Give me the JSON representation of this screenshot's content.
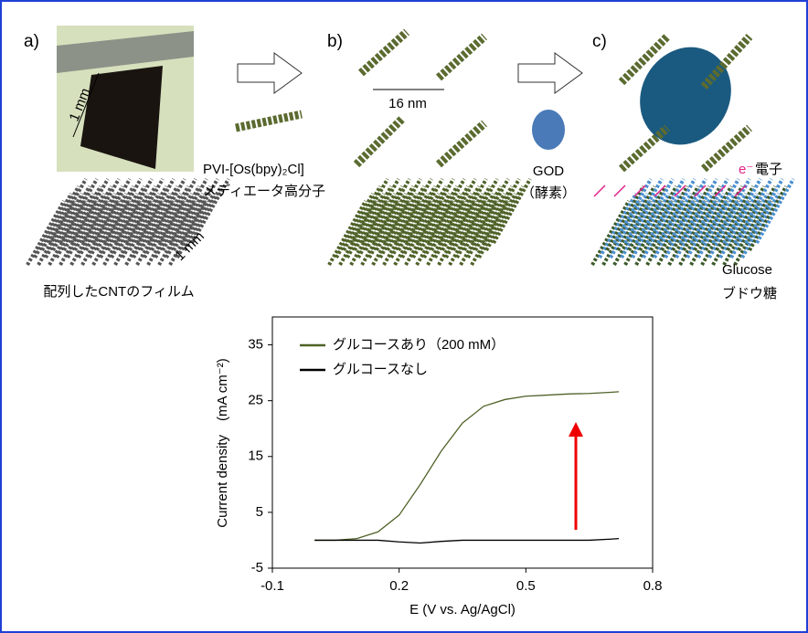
{
  "diagram": {
    "panel_a": "a)",
    "panel_b": "b)",
    "panel_c": "c)",
    "scale_photo": "1 mm",
    "scale_film": "1 mm",
    "cnt_film": "配列したCNTのフィルム",
    "mediator_formula": "PVI-[Os(bpy)₂Cl]",
    "mediator_name": "メディエータ高分子",
    "spacing": "16 nm",
    "enzyme": "GOD",
    "enzyme_note": "（酵素）",
    "electron_symbol": "e⁻",
    "electron_name": "電子",
    "glucose": "Glucose",
    "glucose_jp": "ブドウ糖"
  },
  "chart_data": {
    "type": "line",
    "xlabel": "E (V vs. Ag/AgCl)",
    "ylabel": "Current density　(mA cm⁻²)",
    "x": [
      0.0,
      0.05,
      0.1,
      0.15,
      0.2,
      0.25,
      0.3,
      0.35,
      0.4,
      0.45,
      0.5,
      0.55,
      0.6,
      0.65,
      0.7,
      0.72
    ],
    "series": [
      {
        "name": "グルコースあり（200 mM）",
        "color": "#4f6228",
        "values": [
          0,
          0,
          0.3,
          1.5,
          4.5,
          10,
          16,
          21,
          24,
          25.2,
          25.8,
          26,
          26.2,
          26.3,
          26.5,
          26.6
        ]
      },
      {
        "name": "グルコースなし",
        "color": "#000000",
        "values": [
          0,
          0,
          0,
          0,
          -0.3,
          -0.5,
          -0.2,
          0,
          0,
          0,
          0,
          0,
          0,
          0,
          0.2,
          0.3
        ]
      }
    ],
    "xlim": [
      -0.1,
      0.8
    ],
    "xticks": [
      -0.1,
      0.2,
      0.5,
      0.8
    ],
    "ylim": [
      -5,
      40
    ],
    "yticks": [
      -5,
      5,
      15,
      25,
      35
    ],
    "legend": "upper left"
  }
}
